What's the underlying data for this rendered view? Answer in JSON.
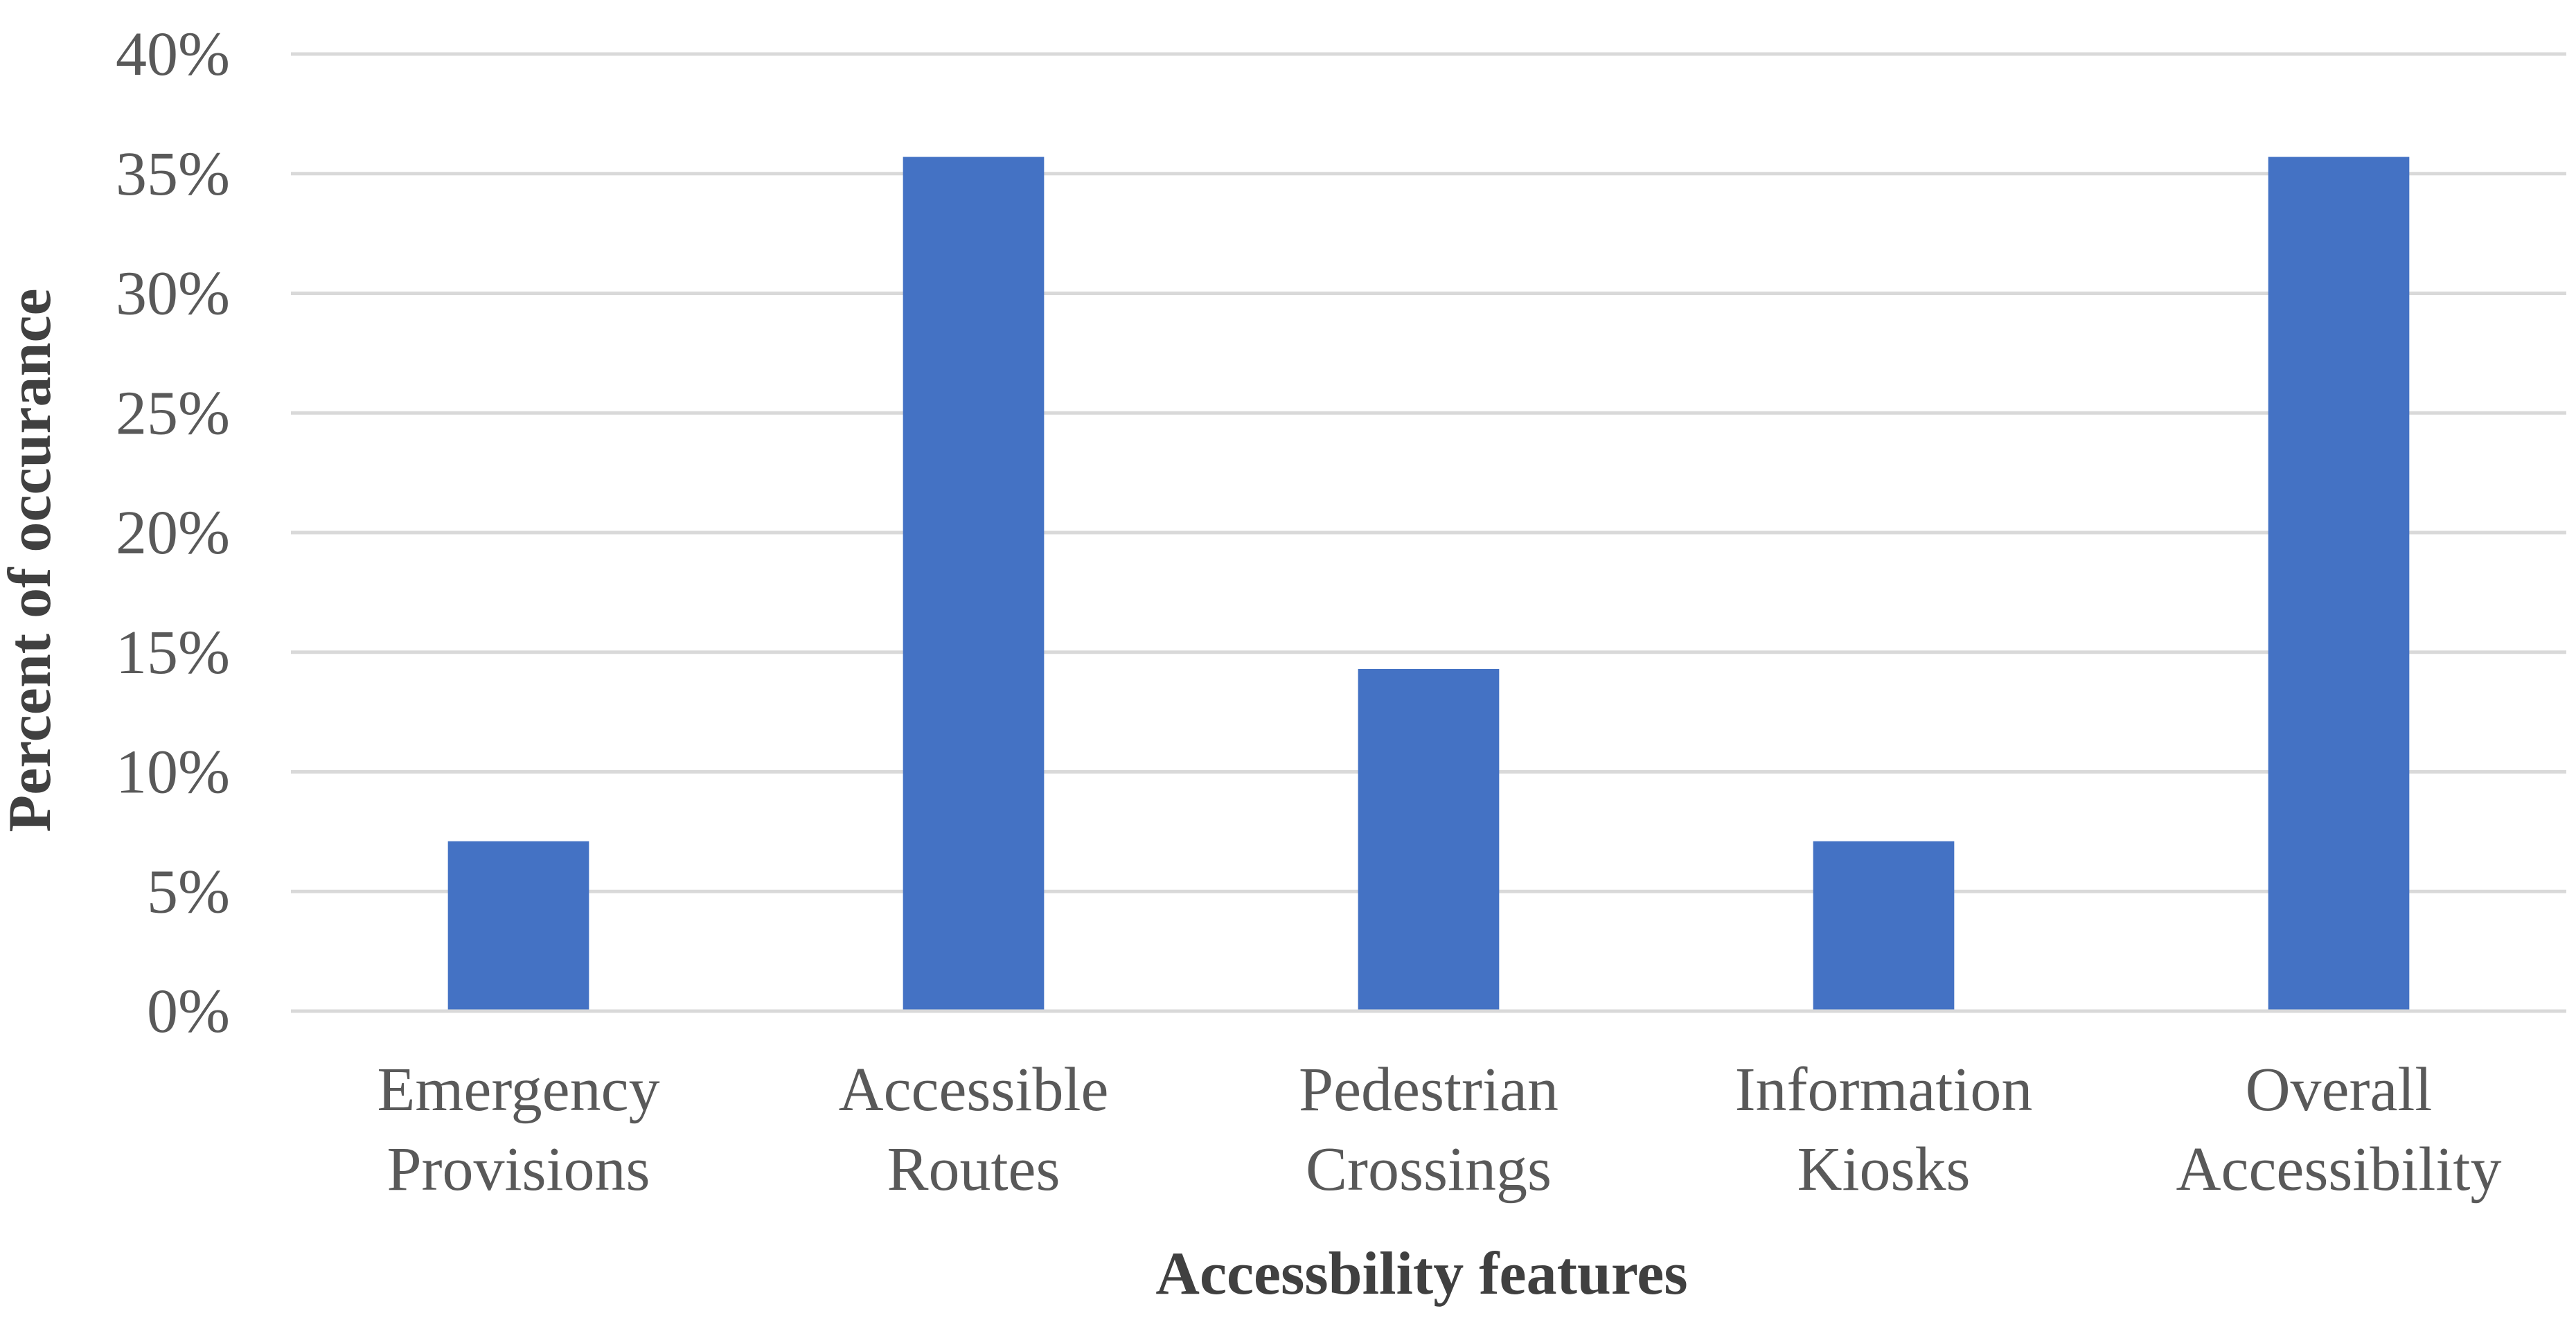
{
  "chart_data": {
    "type": "bar",
    "categories": [
      [
        "Emergency",
        "Provisions"
      ],
      [
        "Accessible",
        "Routes"
      ],
      [
        "Pedestrian",
        "Crossings"
      ],
      [
        "Information",
        "Kiosks"
      ],
      [
        "Overall",
        "Accessibility"
      ]
    ],
    "values": [
      7.1,
      35.7,
      14.3,
      7.1,
      35.7
    ],
    "xlabel": "Accessbility features",
    "ylabel": "Percent of occurance",
    "ylim": [
      0,
      40
    ],
    "ytick_step": 5,
    "ytick_labels": [
      "0%",
      "5%",
      "10%",
      "15%",
      "20%",
      "25%",
      "30%",
      "35%",
      "40%"
    ],
    "grid": true,
    "legend": "none",
    "bar_color": "#4472c4"
  }
}
